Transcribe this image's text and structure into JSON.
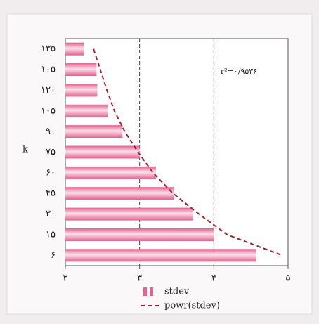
{
  "chart_data": {
    "type": "hbar",
    "ylabel": "k",
    "annotation": "r²=۰/۹۵۳۶",
    "categories": [
      "۱۳۵",
      "۱۰۵",
      "۱۲۰",
      "۱۰۵",
      "۹۰",
      "۷۵",
      "۶۰",
      "۴۵",
      "۳۰",
      "۱۵",
      "۶"
    ],
    "series": [
      {
        "name": "stdev",
        "color": "#e3608f",
        "values": [
          2.25,
          2.42,
          2.43,
          2.57,
          2.77,
          3.0,
          3.22,
          3.46,
          3.72,
          4.0,
          4.57
        ]
      },
      {
        "name": "powr(stdev)",
        "color": "#a3202a",
        "kind": "dashed-line",
        "values": [
          2.38,
          2.47,
          2.56,
          2.66,
          2.8,
          2.98,
          3.18,
          3.45,
          3.8,
          4.18,
          4.92
        ]
      }
    ],
    "xlim": [
      2,
      5
    ],
    "xticks": [
      {
        "value": 2,
        "label": "۲"
      },
      {
        "value": 3,
        "label": "۳"
      },
      {
        "value": 4,
        "label": "۴"
      },
      {
        "value": 5,
        "label": "۵"
      }
    ],
    "grid": true
  }
}
